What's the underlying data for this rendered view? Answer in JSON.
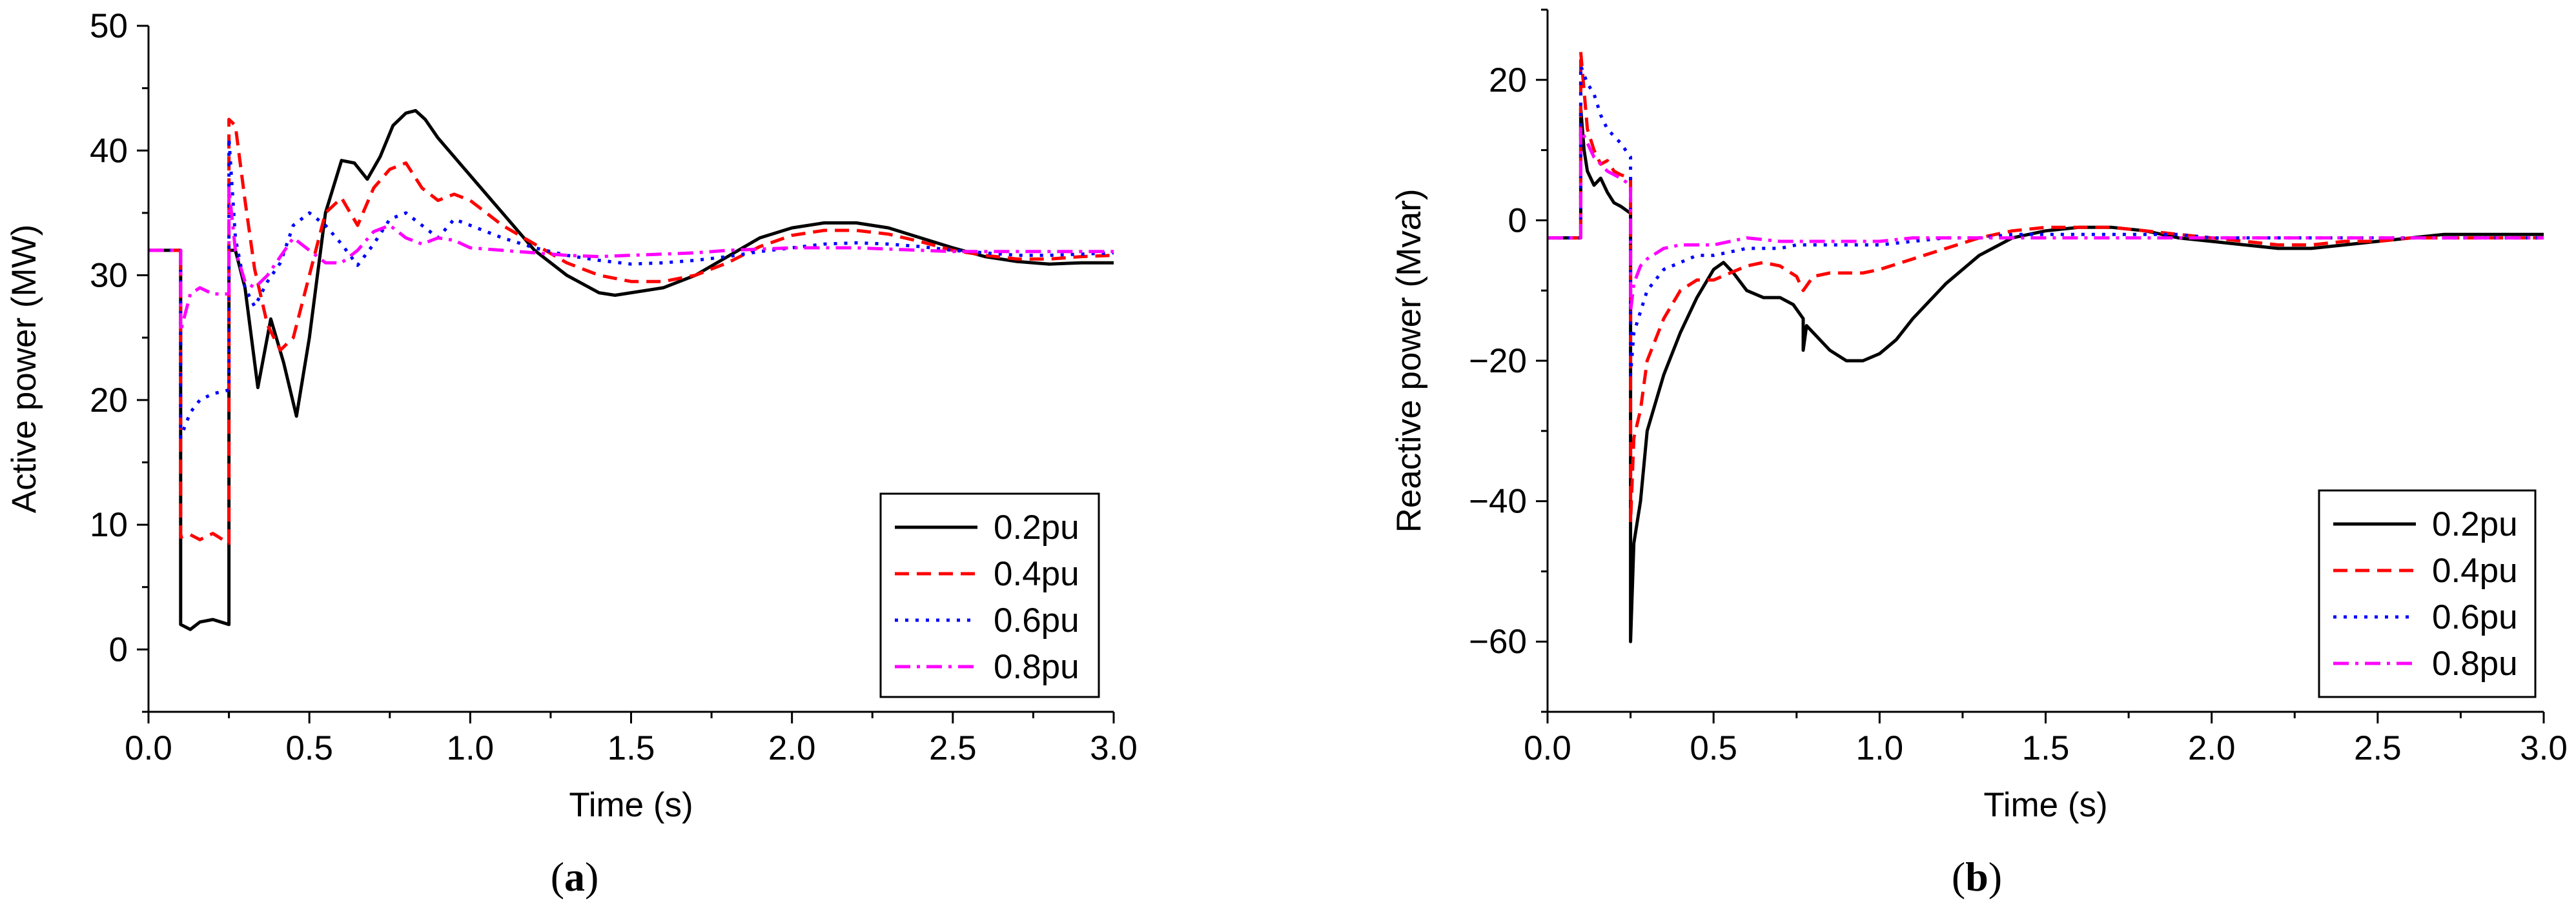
{
  "chart_data": [
    {
      "type": "line",
      "panel_label": "a",
      "title": "",
      "xlabel": "Time (s)",
      "ylabel": "Active power (MW)",
      "xlim": [
        0.0,
        3.0
      ],
      "ylim": [
        -5,
        50
      ],
      "xticks": [
        "0.0",
        "0.5",
        "1.0",
        "1.5",
        "2.0",
        "2.5",
        "3.0"
      ],
      "yticks": [
        "0",
        "10",
        "20",
        "30",
        "40",
        "50"
      ],
      "legend_position": "bottom-right",
      "series": [
        {
          "name": "0.2pu",
          "color": "#000000",
          "dash": "solid",
          "x": [
            0,
            0.1,
            0.1,
            0.13,
            0.16,
            0.2,
            0.25,
            0.25,
            0.27,
            0.3,
            0.34,
            0.38,
            0.42,
            0.46,
            0.5,
            0.55,
            0.6,
            0.64,
            0.68,
            0.72,
            0.76,
            0.8,
            0.83,
            0.86,
            0.9,
            0.95,
            1.0,
            1.1,
            1.2,
            1.3,
            1.4,
            1.45,
            1.5,
            1.6,
            1.7,
            1.8,
            1.9,
            2.0,
            2.1,
            2.2,
            2.3,
            2.4,
            2.5,
            2.6,
            2.7,
            2.8,
            2.9,
            3.0
          ],
          "y": [
            32,
            32,
            2,
            1.6,
            2.2,
            2.4,
            2,
            32,
            32,
            29,
            21,
            26.5,
            23,
            18.7,
            25,
            35,
            39.2,
            39,
            37.7,
            39.5,
            42,
            43,
            43.2,
            42.5,
            41,
            39.5,
            38,
            35,
            32,
            30,
            28.6,
            28.4,
            28.6,
            29,
            30,
            31.5,
            33,
            33.8,
            34.2,
            34.2,
            33.8,
            33,
            32.2,
            31.5,
            31.1,
            30.9,
            31,
            31
          ]
        },
        {
          "name": "0.4pu",
          "color": "#ff0000",
          "dash": "dashed",
          "x": [
            0,
            0.1,
            0.1,
            0.13,
            0.16,
            0.2,
            0.25,
            0.25,
            0.27,
            0.3,
            0.33,
            0.37,
            0.41,
            0.45,
            0.5,
            0.55,
            0.6,
            0.65,
            0.7,
            0.75,
            0.8,
            0.85,
            0.9,
            0.95,
            1.0,
            1.05,
            1.1,
            1.2,
            1.3,
            1.4,
            1.5,
            1.6,
            1.7,
            1.8,
            1.9,
            2.0,
            2.1,
            2.2,
            2.3,
            2.4,
            2.5,
            2.6,
            2.7,
            2.8,
            2.9,
            3.0
          ],
          "y": [
            32,
            32,
            9,
            9.2,
            8.8,
            9.3,
            8.5,
            42.5,
            42,
            36,
            30.5,
            26,
            24,
            25,
            30,
            35,
            36.2,
            34,
            37,
            38.5,
            39,
            37,
            36,
            36.5,
            36,
            35,
            34,
            32.5,
            31,
            30,
            29.5,
            29.5,
            30,
            31,
            32.3,
            33.2,
            33.6,
            33.6,
            33.3,
            32.7,
            32,
            31.6,
            31.3,
            31.3,
            31.5,
            31.6
          ]
        },
        {
          "name": "0.6pu",
          "color": "#0000ff",
          "dash": "dotted",
          "x": [
            0,
            0.1,
            0.1,
            0.13,
            0.16,
            0.2,
            0.25,
            0.25,
            0.27,
            0.3,
            0.33,
            0.37,
            0.41,
            0.45,
            0.5,
            0.55,
            0.6,
            0.65,
            0.7,
            0.75,
            0.8,
            0.85,
            0.9,
            0.95,
            1.0,
            1.1,
            1.2,
            1.3,
            1.4,
            1.5,
            1.6,
            1.7,
            1.8,
            1.9,
            2.0,
            2.1,
            2.2,
            2.3,
            2.4,
            2.5,
            2.6,
            2.7,
            2.8,
            2.9,
            3.0
          ],
          "y": [
            32,
            32,
            17,
            19,
            20,
            20.5,
            20.8,
            41,
            33,
            29,
            27.5,
            29.5,
            31,
            34,
            35,
            34,
            32.5,
            30.8,
            32.5,
            34.5,
            35,
            34,
            33,
            34.5,
            34,
            33,
            32.2,
            31.6,
            31.2,
            30.9,
            31,
            31.2,
            31.5,
            31.9,
            32.2,
            32.5,
            32.6,
            32.5,
            32.3,
            32,
            31.8,
            31.6,
            31.6,
            31.7,
            31.8
          ]
        },
        {
          "name": "0.8pu",
          "color": "#ff00ff",
          "dash": "dashdot",
          "x": [
            0,
            0.1,
            0.1,
            0.13,
            0.16,
            0.2,
            0.25,
            0.25,
            0.27,
            0.3,
            0.33,
            0.37,
            0.41,
            0.45,
            0.5,
            0.55,
            0.6,
            0.65,
            0.7,
            0.75,
            0.8,
            0.85,
            0.9,
            0.95,
            1.0,
            1.1,
            1.2,
            1.3,
            1.4,
            1.5,
            1.6,
            1.7,
            1.8,
            1.9,
            2.0,
            2.1,
            2.2,
            2.3,
            2.4,
            2.5,
            2.6,
            2.7,
            2.8,
            2.9,
            3.0
          ],
          "y": [
            32,
            32,
            25.5,
            28.5,
            29,
            28.5,
            28.5,
            37,
            32,
            29.5,
            29,
            30,
            31.5,
            33,
            32,
            31,
            31,
            32,
            33.5,
            34,
            33,
            32.5,
            33,
            32.8,
            32.2,
            32,
            31.8,
            31.6,
            31.5,
            31.6,
            31.7,
            31.8,
            32,
            32.1,
            32.2,
            32.2,
            32.2,
            32.1,
            32,
            31.9,
            31.9,
            31.9,
            31.9,
            31.9,
            31.9
          ]
        }
      ]
    },
    {
      "type": "line",
      "panel_label": "b",
      "title": "",
      "xlabel": "Time (s)",
      "ylabel": "Reactive power (Mvar)",
      "xlim": [
        0.0,
        3.0
      ],
      "ylim": [
        -70,
        30
      ],
      "xticks": [
        "0.0",
        "0.5",
        "1.0",
        "1.5",
        "2.0",
        "2.5",
        "3.0"
      ],
      "yticks": [
        "-60",
        "-40",
        "-20",
        "0",
        "20"
      ],
      "legend_position": "bottom-right",
      "series": [
        {
          "name": "0.2pu",
          "color": "#000000",
          "dash": "solid",
          "x": [
            0,
            0.1,
            0.1,
            0.11,
            0.12,
            0.14,
            0.16,
            0.18,
            0.2,
            0.22,
            0.25,
            0.25,
            0.26,
            0.28,
            0.3,
            0.35,
            0.4,
            0.45,
            0.5,
            0.53,
            0.56,
            0.6,
            0.65,
            0.7,
            0.74,
            0.77,
            0.77,
            0.78,
            0.8,
            0.85,
            0.9,
            0.95,
            1.0,
            1.05,
            1.1,
            1.2,
            1.3,
            1.4,
            1.5,
            1.6,
            1.7,
            1.8,
            1.9,
            2.0,
            2.1,
            2.2,
            2.3,
            2.4,
            2.5,
            2.6,
            2.7,
            2.8,
            2.9,
            3.0
          ],
          "y": [
            -2.5,
            -2.5,
            16,
            10,
            7,
            5,
            6,
            4,
            2.5,
            2,
            1,
            -60,
            -46,
            -40,
            -30,
            -22,
            -16,
            -11,
            -7,
            -6,
            -7.5,
            -10,
            -11,
            -11,
            -12,
            -14,
            -18.5,
            -15,
            -16,
            -18.5,
            -20,
            -20,
            -19,
            -17,
            -14,
            -9,
            -5,
            -2.5,
            -1.5,
            -1,
            -1,
            -1.5,
            -2.5,
            -3,
            -3.5,
            -4,
            -4,
            -3.5,
            -3,
            -2.5,
            -2,
            -2,
            -2,
            -2
          ]
        },
        {
          "name": "0.4pu",
          "color": "#ff0000",
          "dash": "dashed",
          "x": [
            0,
            0.1,
            0.1,
            0.12,
            0.14,
            0.16,
            0.18,
            0.2,
            0.22,
            0.25,
            0.25,
            0.26,
            0.28,
            0.3,
            0.35,
            0.4,
            0.45,
            0.5,
            0.55,
            0.6,
            0.65,
            0.7,
            0.75,
            0.77,
            0.8,
            0.85,
            0.9,
            0.95,
            1.0,
            1.1,
            1.2,
            1.3,
            1.4,
            1.5,
            1.6,
            1.7,
            1.8,
            1.9,
            2.0,
            2.1,
            2.2,
            2.3,
            2.4,
            2.5,
            2.6,
            2.7,
            2.8,
            2.9,
            3.0
          ],
          "y": [
            -2.5,
            -2.5,
            24,
            13,
            10,
            8,
            8.5,
            7,
            6.5,
            6,
            -43,
            -31,
            -27,
            -20,
            -14,
            -10,
            -8.5,
            -8.5,
            -7.5,
            -6.5,
            -6,
            -6.5,
            -8,
            -10,
            -8,
            -7.5,
            -7.5,
            -7.5,
            -7,
            -5.5,
            -4,
            -2.5,
            -1.5,
            -1,
            -1,
            -1,
            -1.5,
            -2,
            -2.5,
            -3,
            -3.5,
            -3.5,
            -3,
            -3,
            -2.5,
            -2.5,
            -2.5,
            -2.5,
            -2.5
          ]
        },
        {
          "name": "0.6pu",
          "color": "#0000ff",
          "dash": "dotted",
          "x": [
            0,
            0.1,
            0.1,
            0.12,
            0.14,
            0.16,
            0.18,
            0.2,
            0.22,
            0.25,
            0.25,
            0.26,
            0.28,
            0.3,
            0.35,
            0.4,
            0.45,
            0.5,
            0.55,
            0.6,
            0.65,
            0.7,
            0.75,
            0.8,
            0.9,
            1.0,
            1.1,
            1.2,
            1.3,
            1.4,
            1.5,
            1.6,
            1.7,
            1.8,
            1.9,
            2.0,
            2.1,
            2.2,
            2.3,
            2.4,
            2.5,
            2.6,
            2.7,
            2.8,
            2.9,
            3.0
          ],
          "y": [
            -2.5,
            -2.5,
            22,
            19.5,
            18,
            15,
            13,
            12,
            11,
            9,
            -22,
            -16,
            -13,
            -10,
            -7,
            -6,
            -5,
            -5,
            -4.5,
            -4,
            -4,
            -4,
            -3.5,
            -3.5,
            -3.5,
            -3.5,
            -3,
            -2.5,
            -2.5,
            -2,
            -2,
            -2,
            -2,
            -2,
            -2,
            -2.5,
            -2.5,
            -2.5,
            -2.5,
            -2.5,
            -2.5,
            -2.5,
            -2.5,
            -2.5,
            -2.5,
            -2.5
          ]
        },
        {
          "name": "0.8pu",
          "color": "#ff00ff",
          "dash": "dashdot",
          "x": [
            0,
            0.1,
            0.1,
            0.12,
            0.14,
            0.16,
            0.18,
            0.2,
            0.22,
            0.25,
            0.25,
            0.26,
            0.28,
            0.3,
            0.35,
            0.4,
            0.45,
            0.5,
            0.55,
            0.6,
            0.7,
            0.8,
            0.9,
            1.0,
            1.1,
            1.2,
            1.3,
            1.4,
            1.5,
            1.6,
            1.7,
            1.8,
            1.9,
            2.0,
            2.1,
            2.2,
            2.3,
            2.4,
            2.5,
            2.6,
            2.7,
            2.8,
            2.9,
            3.0
          ],
          "y": [
            -2.5,
            -2.5,
            13,
            11,
            9,
            8,
            7,
            6.5,
            6,
            5,
            -13,
            -9,
            -6.5,
            -5.5,
            -4,
            -3.5,
            -3.5,
            -3.5,
            -3,
            -2.5,
            -3,
            -3,
            -3,
            -3,
            -2.5,
            -2.5,
            -2.5,
            -2.5,
            -2.5,
            -2.5,
            -2.5,
            -2.5,
            -2.5,
            -2.5,
            -2.5,
            -2.5,
            -2.5,
            -2.5,
            -2.5,
            -2.5,
            -2.5,
            -2.5,
            -2.5,
            -2.5
          ]
        }
      ]
    }
  ]
}
